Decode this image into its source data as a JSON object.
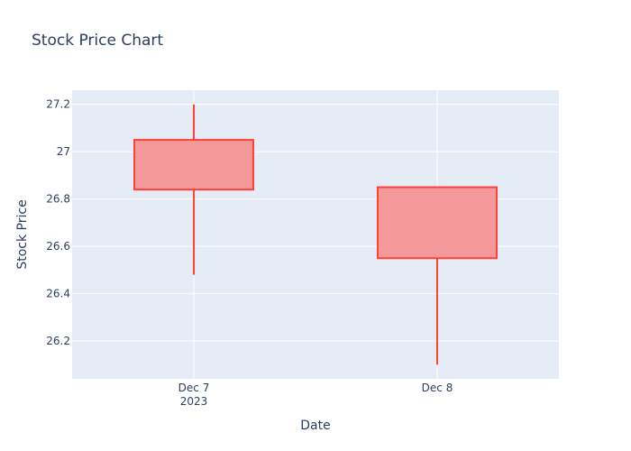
{
  "chart_data": {
    "type": "candlestick",
    "title": "Stock Price Chart",
    "xlabel": "Date",
    "ylabel": "Stock Price",
    "x_ticks": [
      {
        "label": "Dec 7",
        "sublabel": "2023"
      },
      {
        "label": "Dec 8",
        "sublabel": ""
      }
    ],
    "y_ticks": [
      26.2,
      26.4,
      26.6,
      26.8,
      27,
      27.2
    ],
    "y_tick_labels": [
      "26.2",
      "26.4",
      "26.6",
      "26.8",
      "27",
      "27.2"
    ],
    "ylim": [
      26.04,
      27.26
    ],
    "grid": true,
    "candles": [
      {
        "date": "2023-12-07",
        "open": 27.05,
        "high": 27.2,
        "low": 26.48,
        "close": 26.84
      },
      {
        "date": "2023-12-08",
        "open": 26.85,
        "high": 26.85,
        "low": 26.1,
        "close": 26.55
      }
    ],
    "colors": {
      "decreasing_line": "#ff4136",
      "decreasing_fill": "#f4999a",
      "plot_bg": "#e5ecf6",
      "grid": "#ffffff",
      "text": "#2a3f5f"
    }
  }
}
